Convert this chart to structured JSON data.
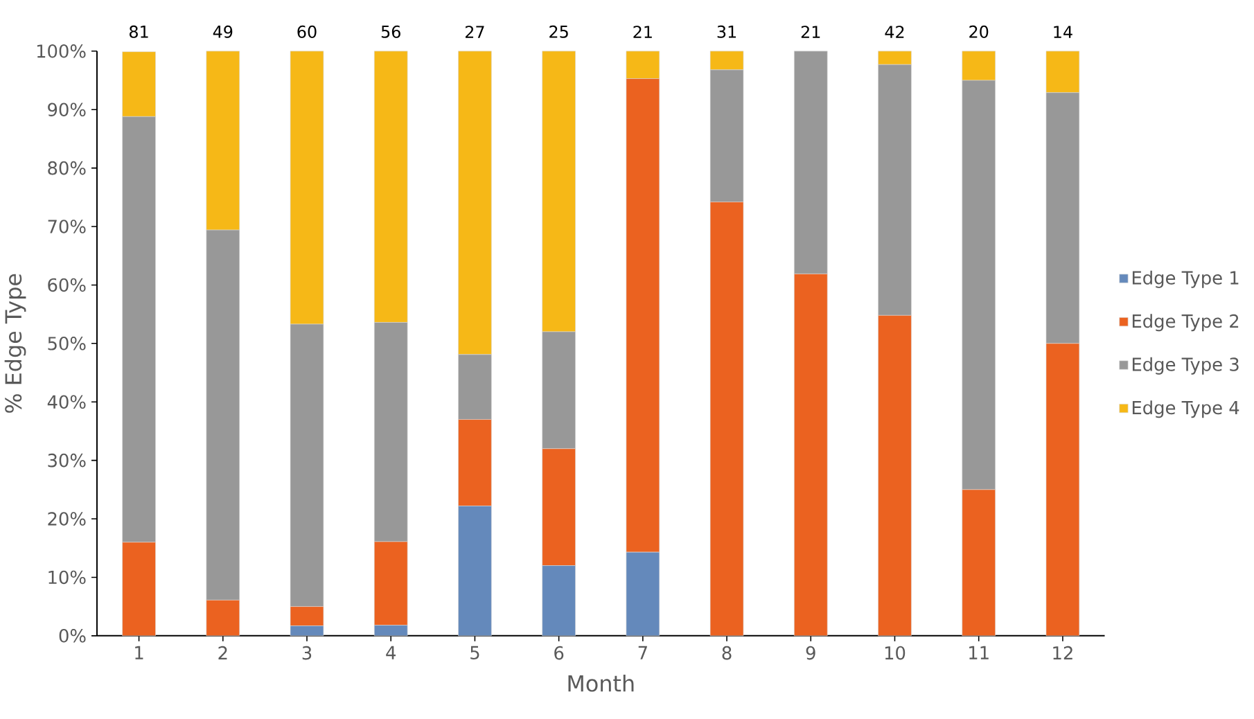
{
  "chart_data": {
    "type": "bar",
    "stacked": true,
    "xlabel": "Month",
    "ylabel": "% Edge Type",
    "categories": [
      "1",
      "2",
      "3",
      "4",
      "5",
      "6",
      "7",
      "8",
      "9",
      "10",
      "11",
      "12"
    ],
    "series": [
      {
        "name": "Edge Type 1",
        "color": "#6489bb",
        "values": [
          0,
          0,
          1.7,
          1.8,
          22.2,
          12,
          14.3,
          0,
          0,
          0,
          0,
          0
        ]
      },
      {
        "name": "Edge Type 2",
        "color": "#eb6220",
        "values": [
          16,
          6.1,
          3.3,
          14.3,
          14.8,
          20,
          81,
          74.2,
          61.9,
          54.8,
          25,
          50
        ]
      },
      {
        "name": "Edge Type 3",
        "color": "#989898",
        "values": [
          72.8,
          63.3,
          48.3,
          37.5,
          11.1,
          20,
          0,
          22.6,
          38.1,
          42.9,
          70,
          42.9
        ]
      },
      {
        "name": "Edge Type 4",
        "color": "#f6b817",
        "values": [
          11.1,
          30.6,
          46.7,
          46.4,
          51.9,
          48,
          4.7,
          3.2,
          0,
          2.3,
          5,
          7.1
        ]
      }
    ],
    "annotations": [
      "81",
      "49",
      "60",
      "56",
      "27",
      "25",
      "21",
      "31",
      "21",
      "42",
      "20",
      "14"
    ],
    "ylim": [
      0,
      100
    ],
    "yticks": [
      {
        "value": 0,
        "label": "0%"
      },
      {
        "value": 10,
        "label": "10%"
      },
      {
        "value": 20,
        "label": "20%"
      },
      {
        "value": 30,
        "label": "30%"
      },
      {
        "value": 40,
        "label": "40%"
      },
      {
        "value": 50,
        "label": "50%"
      },
      {
        "value": 60,
        "label": "60%"
      },
      {
        "value": 70,
        "label": "70%"
      },
      {
        "value": 80,
        "label": "80%"
      },
      {
        "value": 90,
        "label": "90%"
      },
      {
        "value": 100,
        "label": "100%"
      }
    ],
    "grid": false,
    "legend": "right"
  }
}
